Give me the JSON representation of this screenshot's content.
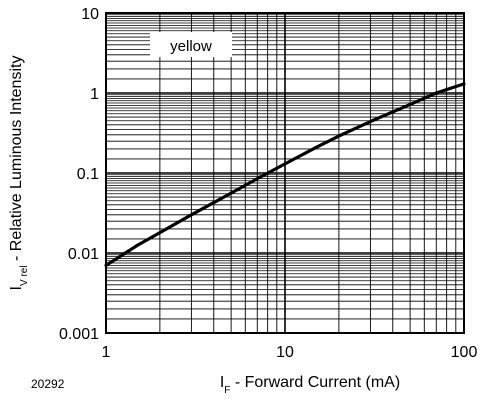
{
  "chart_data": {
    "type": "line",
    "title": "",
    "xlabel": {
      "main": "I",
      "sub": "F",
      "rest": " - Forward Current (mA)"
    },
    "ylabel": {
      "main": "I",
      "sub": "V rel",
      "rest": " - Relative Luminous Intensity"
    },
    "x_scale": "log",
    "y_scale": "log",
    "xlim": [
      1,
      100
    ],
    "ylim": [
      0.001,
      10
    ],
    "x_tick_labels": [
      "1",
      "10",
      "100"
    ],
    "y_tick_labels": [
      "0.001",
      "0.01",
      "0.1",
      "1",
      "10"
    ],
    "grid": true,
    "legend": "top-left",
    "series": [
      {
        "name": "yellow",
        "color": "#000000",
        "x": [
          1,
          1.5,
          2,
          3,
          5,
          7,
          10,
          15,
          20,
          30,
          50,
          70,
          100
        ],
        "y": [
          0.007,
          0.0125,
          0.018,
          0.03,
          0.056,
          0.085,
          0.13,
          0.21,
          0.29,
          0.44,
          0.72,
          1.0,
          1.3
        ]
      }
    ]
  },
  "figure_id": "20292"
}
